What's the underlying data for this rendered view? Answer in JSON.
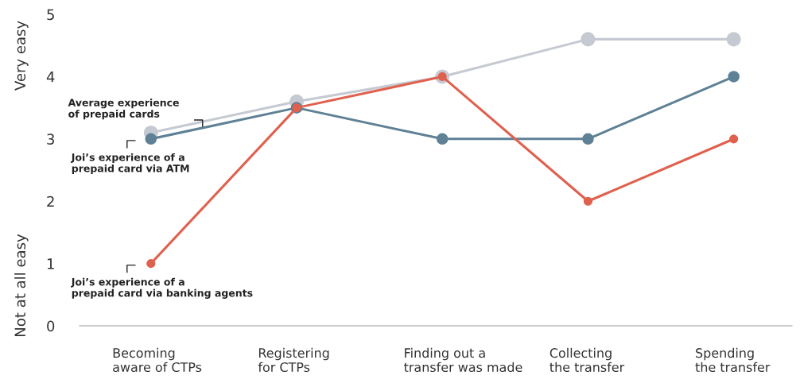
{
  "chart_data": {
    "type": "line",
    "categories": [
      "Becoming\naware of CTPs",
      "Registering\nfor CTPs",
      "Finding out a\ntransfer was made",
      "Collecting\nthe transfer",
      "Spending\nthe transfer"
    ],
    "series": [
      {
        "name": "Average experience\nof prepaid cards",
        "color": "#c5c9d1",
        "values": [
          3.1,
          3.6,
          4.0,
          4.6,
          4.6
        ]
      },
      {
        "name": "Joi’s experience of a\nprepaid card via ATM",
        "color": "#5f8196",
        "values": [
          3.0,
          3.5,
          3.0,
          3.0,
          4.0
        ]
      },
      {
        "name": "Joi’s experience of a\nprepaid card via banking agents",
        "color": "#e0604e",
        "values": [
          1.0,
          3.5,
          4.0,
          2.0,
          3.0
        ]
      }
    ],
    "ylim": [
      0,
      5
    ],
    "yticks": [
      0,
      1,
      2,
      3,
      4,
      5
    ],
    "annotations": [
      "Very easy",
      "Not at all easy"
    ],
    "marker": "circle",
    "line_style": "solid",
    "grid": false,
    "legend": false
  }
}
